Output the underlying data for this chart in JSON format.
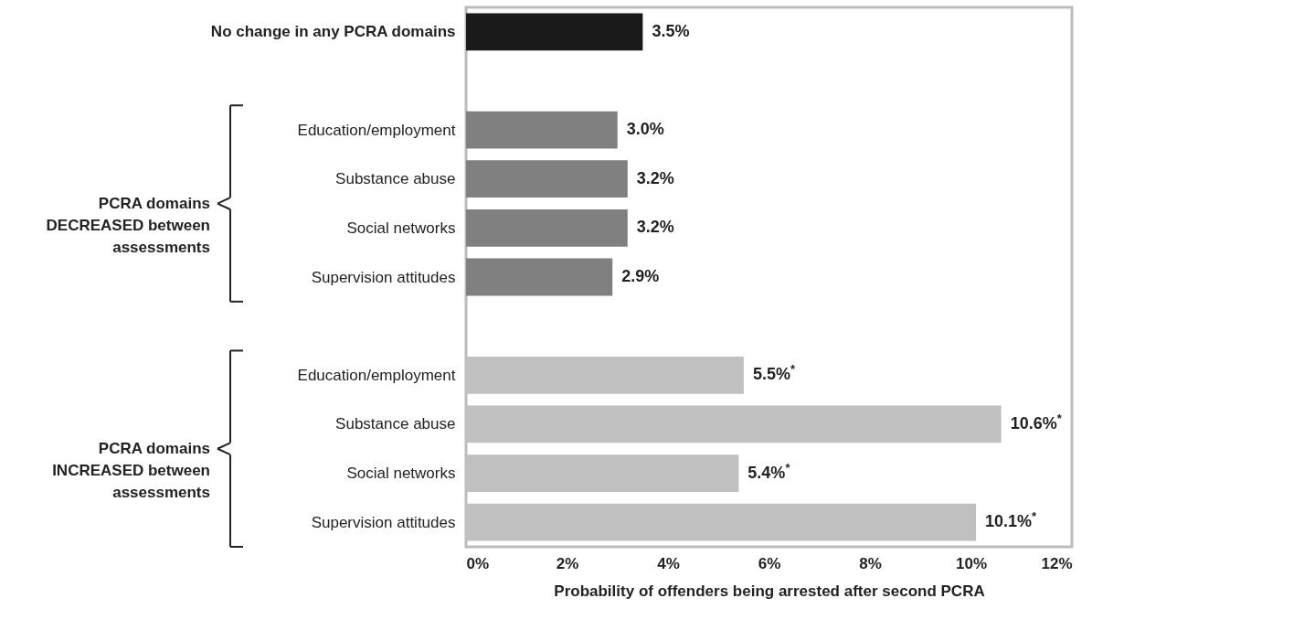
{
  "chart_data": {
    "type": "bar",
    "orientation": "horizontal",
    "xlabel": "Probability of offenders being arrested after second PCRA",
    "categories": [
      "No change in any PCRA domains",
      null,
      "Education/employment",
      "Substance abuse",
      "Social networks",
      "Supervision attitudes",
      null,
      "Education/employment",
      "Substance abuse",
      "Social networks",
      "Supervision attitudes"
    ],
    "values": [
      3.5,
      null,
      3.0,
      3.2,
      3.2,
      2.9,
      null,
      5.5,
      10.6,
      5.4,
      10.1
    ],
    "colors": [
      "#1a1a1a",
      null,
      "#808080",
      "#808080",
      "#808080",
      "#808080",
      null,
      "#c0c0c0",
      "#c0c0c0",
      "#c0c0c0",
      "#c0c0c0"
    ],
    "value_labels": [
      "3.5%",
      null,
      "3.0%",
      "3.2%",
      "3.2%",
      "2.9%",
      null,
      "5.5%$^{*}$",
      "10.6%$^{*}$",
      "5.4%$^{*}$",
      "10.1%$^{*}$"
    ],
    "xlim": [
      0,
      12
    ],
    "xticks": [
      {
        "value": 0,
        "label": "0%"
      },
      {
        "value": 2,
        "label": "2%"
      },
      {
        "value": 4,
        "label": "4%"
      },
      {
        "value": 6,
        "label": "6%"
      },
      {
        "value": 8,
        "label": "8%"
      },
      {
        "value": 10,
        "label": "10%"
      },
      {
        "value": 12,
        "label": "12%"
      }
    ],
    "annotations": [
      "PCRA domains DECREASED between assessments",
      "PCRA domains INCREASED between assessments"
    ],
    "grid": false
  }
}
